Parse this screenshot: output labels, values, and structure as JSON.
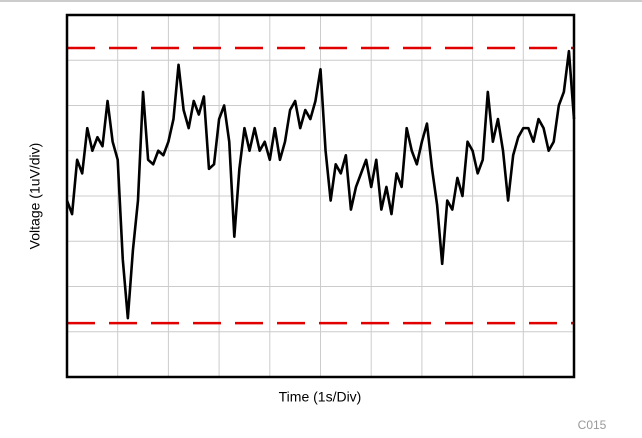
{
  "chart_data": {
    "type": "line",
    "xlabel": "Time (1s/Div)",
    "ylabel": "Voltage (1uV/div)",
    "note": "C015",
    "xlim": [
      0,
      10
    ],
    "ylim": [
      -4,
      4
    ],
    "xticks": [
      0,
      1,
      2,
      3,
      4,
      5,
      6,
      7,
      8,
      9,
      10
    ],
    "yticks": [
      -4,
      -3,
      -2,
      -1,
      0,
      1,
      2,
      3,
      4
    ],
    "grid": true,
    "reference_lines": {
      "values": [
        3.27,
        -2.81
      ],
      "color": "#e00000",
      "style": "dashed"
    },
    "x": [
      0,
      0.1,
      0.2,
      0.3,
      0.4,
      0.5,
      0.6,
      0.7,
      0.8,
      0.9,
      1,
      1.1,
      1.2,
      1.3,
      1.4,
      1.5,
      1.6,
      1.7,
      1.8,
      1.9,
      2,
      2.1,
      2.2,
      2.3,
      2.4,
      2.5,
      2.6,
      2.7,
      2.8,
      2.9,
      3,
      3.1,
      3.2,
      3.3,
      3.4,
      3.5,
      3.6,
      3.7,
      3.8,
      3.9,
      4,
      4.1,
      4.2,
      4.3,
      4.4,
      4.5,
      4.6,
      4.7,
      4.8,
      4.9,
      5,
      5.1,
      5.2,
      5.3,
      5.4,
      5.5,
      5.6,
      5.7,
      5.8,
      5.9,
      6,
      6.1,
      6.2,
      6.3,
      6.4,
      6.5,
      6.6,
      6.7,
      6.8,
      6.9,
      7,
      7.1,
      7.2,
      7.3,
      7.4,
      7.5,
      7.6,
      7.7,
      7.8,
      7.9,
      8,
      8.1,
      8.2,
      8.3,
      8.4,
      8.5,
      8.6,
      8.7,
      8.8,
      8.9,
      9,
      9.1,
      9.2,
      9.3,
      9.4,
      9.5,
      9.6,
      9.7,
      9.8,
      9.9,
      10
    ],
    "series": [
      {
        "color": "#000000",
        "values": [
          -0.1,
          -0.4,
          0.8,
          0.5,
          1.5,
          1.0,
          1.3,
          1.1,
          2.1,
          1.2,
          0.8,
          -1.4,
          -2.7,
          -1.2,
          -0.1,
          2.3,
          0.8,
          0.7,
          1.0,
          0.9,
          1.2,
          1.7,
          2.9,
          1.9,
          1.5,
          2.1,
          1.8,
          2.2,
          0.6,
          0.7,
          1.7,
          2.0,
          1.2,
          -0.9,
          0.6,
          1.5,
          1.0,
          1.5,
          1.0,
          1.2,
          0.8,
          1.5,
          0.8,
          1.2,
          1.9,
          2.1,
          1.5,
          1.9,
          1.7,
          2.1,
          2.8,
          1.0,
          -0.1,
          0.7,
          0.5,
          0.9,
          -0.3,
          0.2,
          0.5,
          0.8,
          0.2,
          0.8,
          -0.3,
          0.2,
          -0.4,
          0.5,
          0.2,
          1.5,
          1.0,
          0.7,
          1.2,
          1.6,
          0.6,
          -0.2,
          -1.5,
          -0.1,
          -0.3,
          0.4,
          0.0,
          1.2,
          1.0,
          0.5,
          0.8,
          2.3,
          1.2,
          1.7,
          1.0,
          -0.1,
          0.9,
          1.3,
          1.5,
          1.5,
          1.2,
          1.7,
          1.5,
          1.0,
          1.2,
          2.0,
          2.3,
          3.2,
          1.7
        ]
      }
    ]
  }
}
